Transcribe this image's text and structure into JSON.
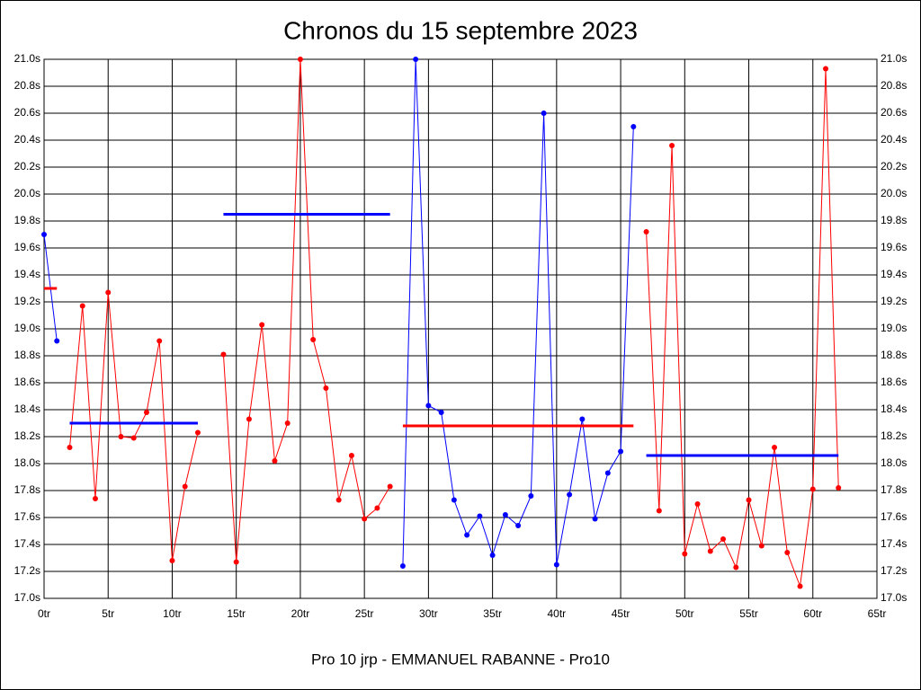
{
  "chart_data": {
    "type": "line",
    "title": "Chronos du 15 septembre 2023",
    "x_label": "Pro 10 jrp - EMMANUEL RABANNE - Pro10",
    "xlim": [
      0,
      65
    ],
    "ylim": [
      17,
      21
    ],
    "grid": true,
    "xticks": [
      {
        "value": 0,
        "label": "0tr"
      },
      {
        "value": 5,
        "label": "5tr"
      },
      {
        "value": 10,
        "label": "10tr"
      },
      {
        "value": 15,
        "label": "15tr"
      },
      {
        "value": 20,
        "label": "20tr"
      },
      {
        "value": 25,
        "label": "25tr"
      },
      {
        "value": 30,
        "label": "30tr"
      },
      {
        "value": 35,
        "label": "35tr"
      },
      {
        "value": 40,
        "label": "40tr"
      },
      {
        "value": 45,
        "label": "45tr"
      },
      {
        "value": 50,
        "label": "50tr"
      },
      {
        "value": 55,
        "label": "55tr"
      },
      {
        "value": 60,
        "label": "60tr"
      },
      {
        "value": 65,
        "label": "65tr"
      }
    ],
    "yticks": [
      {
        "value": 17,
        "label": "17.0s"
      },
      {
        "value": 17.2,
        "label": "17.2s"
      },
      {
        "value": 17.4,
        "label": "17.4s"
      },
      {
        "value": 17.6,
        "label": "17.6s"
      },
      {
        "value": 17.8,
        "label": "17.8s"
      },
      {
        "value": 18,
        "label": "18.0s"
      },
      {
        "value": 18.2,
        "label": "18.2s"
      },
      {
        "value": 18.4,
        "label": "18.4s"
      },
      {
        "value": 18.6,
        "label": "18.6s"
      },
      {
        "value": 18.8,
        "label": "18.8s"
      },
      {
        "value": 19,
        "label": "19.0s"
      },
      {
        "value": 19.2,
        "label": "19.2s"
      },
      {
        "value": 19.4,
        "label": "19.4s"
      },
      {
        "value": 19.6,
        "label": "19.6s"
      },
      {
        "value": 19.8,
        "label": "19.8s"
      },
      {
        "value": 20,
        "label": "20.0s"
      },
      {
        "value": 20.2,
        "label": "20.2s"
      },
      {
        "value": 20.4,
        "label": "20.4s"
      },
      {
        "value": 20.6,
        "label": "20.6s"
      },
      {
        "value": 20.8,
        "label": "20.8s"
      },
      {
        "value": 21,
        "label": "21.0s"
      }
    ],
    "series": [
      {
        "color": "#0000ff",
        "markers": true,
        "x": [
          0,
          1
        ],
        "values": [
          19.7,
          18.91
        ]
      },
      {
        "color": "#ff0000",
        "markers": true,
        "x": [
          2,
          3,
          4,
          5,
          6,
          7,
          8,
          9,
          10,
          11,
          12
        ],
        "values": [
          18.12,
          19.17,
          17.74,
          19.27,
          18.2,
          18.19,
          18.38,
          18.91,
          17.28,
          17.83,
          18.23
        ]
      },
      {
        "color": "#ff0000",
        "markers": true,
        "x": [
          14,
          15,
          16,
          17,
          18,
          19,
          20,
          21,
          22,
          23,
          24,
          25,
          26,
          27
        ],
        "values": [
          18.81,
          17.27,
          18.33,
          19.03,
          18.02,
          18.3,
          21.0,
          18.92,
          18.56,
          17.73,
          18.06,
          17.59,
          17.67,
          17.83
        ]
      },
      {
        "color": "#0000ff",
        "markers": true,
        "x": [
          28,
          29,
          30,
          31,
          32,
          33,
          34,
          35,
          36,
          37,
          38,
          39,
          40,
          41,
          42,
          43,
          44,
          45,
          46
        ],
        "values": [
          17.24,
          21.0,
          18.43,
          18.38,
          17.73,
          17.47,
          17.61,
          17.32,
          17.62,
          17.54,
          17.76,
          20.6,
          17.25,
          17.77,
          18.33,
          17.59,
          17.93,
          18.09,
          20.5
        ]
      },
      {
        "color": "#ff0000",
        "markers": true,
        "x": [
          47,
          48,
          49,
          50,
          51,
          52,
          53,
          54,
          55,
          56,
          57,
          58,
          59,
          60,
          61,
          62
        ],
        "values": [
          19.72,
          17.65,
          20.36,
          17.33,
          17.7,
          17.35,
          17.44,
          17.23,
          17.73,
          17.39,
          18.12,
          17.34,
          17.09,
          17.81,
          20.93,
          17.82
        ]
      },
      {
        "color": "#ff0000",
        "markers": false,
        "x": [
          0,
          1
        ],
        "values": [
          19.3,
          19.3
        ]
      },
      {
        "color": "#0000ff",
        "markers": false,
        "x": [
          2,
          12
        ],
        "values": [
          18.3,
          18.3
        ]
      },
      {
        "color": "#0000ff",
        "markers": false,
        "x": [
          14,
          27
        ],
        "values": [
          19.85,
          19.85
        ]
      },
      {
        "color": "#ff0000",
        "markers": false,
        "x": [
          28,
          46
        ],
        "values": [
          18.28,
          18.28
        ]
      },
      {
        "color": "#0000ff",
        "markers": false,
        "x": [
          47,
          62
        ],
        "values": [
          18.06,
          18.06
        ]
      }
    ]
  }
}
